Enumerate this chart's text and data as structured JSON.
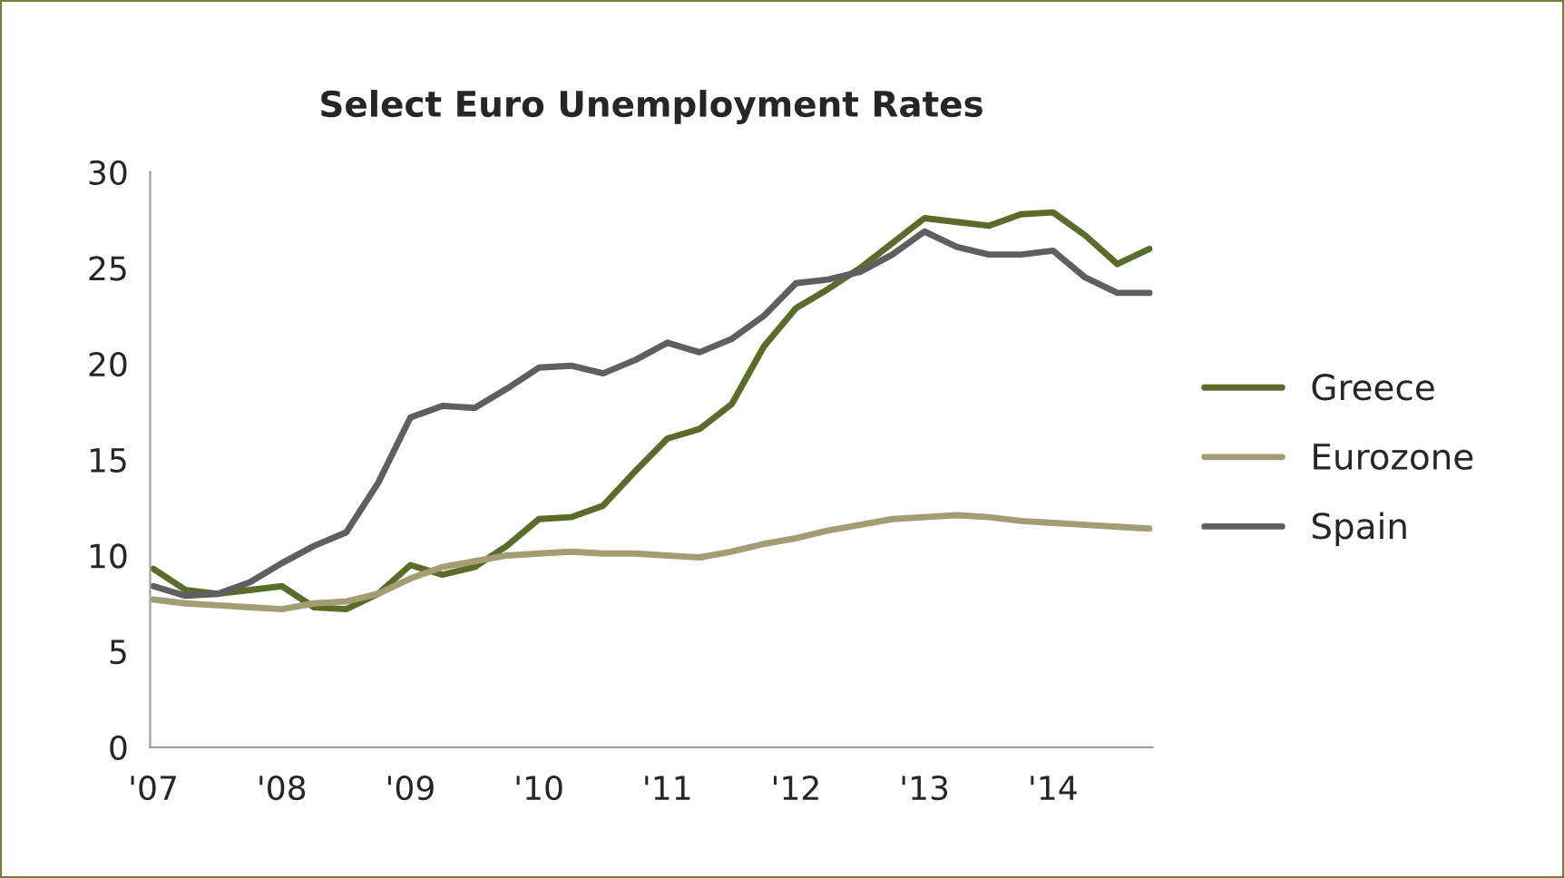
{
  "chart_data": {
    "type": "line",
    "title": "Select Euro Unemployment Rates",
    "categories": [
      "'07",
      null,
      null,
      null,
      "'08",
      null,
      null,
      null,
      "'09",
      null,
      null,
      null,
      "'10",
      null,
      null,
      null,
      "'11",
      null,
      null,
      null,
      "'12",
      null,
      null,
      null,
      "'13",
      null,
      null,
      null,
      "'14",
      null,
      null,
      null
    ],
    "series": [
      {
        "name": "Greece",
        "color": "#5a6b2a",
        "values": [
          9.3,
          8.2,
          8.0,
          8.2,
          8.4,
          7.3,
          7.2,
          8.0,
          9.5,
          9.0,
          9.4,
          10.5,
          11.9,
          12.0,
          12.6,
          14.4,
          16.1,
          16.6,
          17.9,
          20.9,
          22.9,
          23.9,
          25.0,
          26.3,
          27.6,
          27.4,
          27.2,
          27.8,
          27.9,
          26.7,
          25.2,
          26.0
        ]
      },
      {
        "name": "Eurozone",
        "color": "#a39d74",
        "values": [
          7.7,
          7.5,
          7.4,
          7.3,
          7.2,
          7.5,
          7.6,
          8.0,
          8.8,
          9.4,
          9.7,
          10.0,
          10.1,
          10.2,
          10.1,
          10.1,
          10.0,
          9.9,
          10.2,
          10.6,
          10.9,
          11.3,
          11.6,
          11.9,
          12.0,
          12.1,
          12.0,
          11.8,
          11.7,
          11.6,
          11.5,
          11.4
        ]
      },
      {
        "name": "Spain",
        "color": "#5f5f5f",
        "values": [
          8.4,
          7.9,
          8.0,
          8.6,
          9.6,
          10.5,
          11.2,
          13.8,
          17.2,
          17.8,
          17.7,
          18.7,
          19.8,
          19.9,
          19.5,
          20.2,
          21.1,
          20.6,
          21.3,
          22.5,
          24.2,
          24.4,
          24.8,
          25.7,
          26.9,
          26.1,
          25.7,
          25.7,
          25.9,
          24.5,
          23.7,
          23.7
        ]
      }
    ],
    "ylim": [
      0,
      30
    ],
    "yticks": [
      0,
      5,
      10,
      15,
      20,
      25,
      30
    ],
    "grid": false,
    "legend": "right",
    "marker": "none",
    "line_style": "solid"
  }
}
